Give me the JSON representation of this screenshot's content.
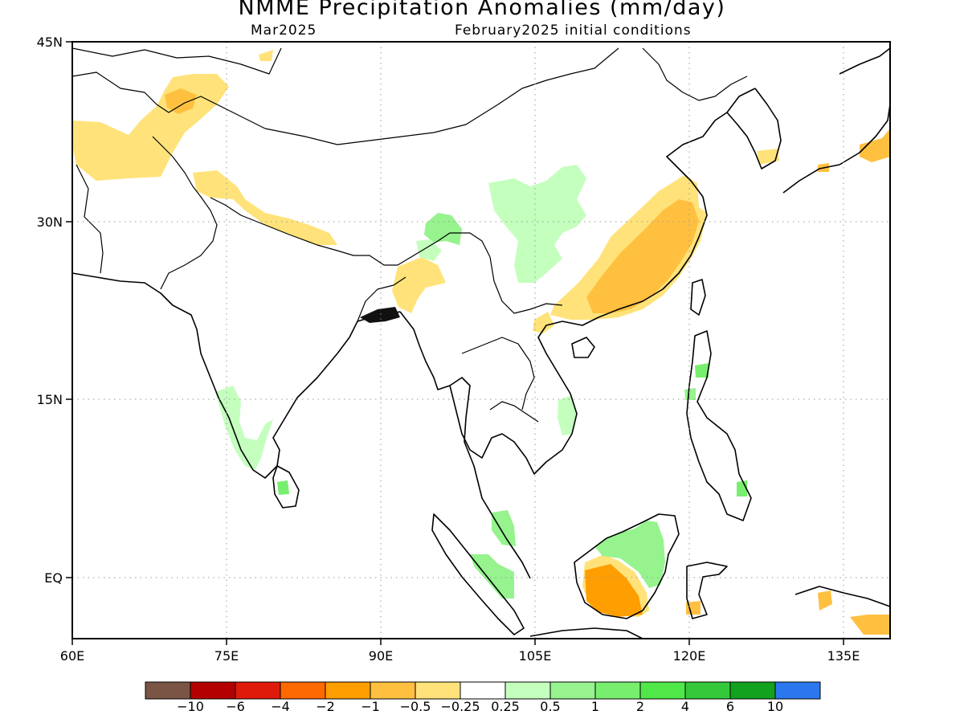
{
  "title": "NMME Precipitation Anomalies (mm/day)",
  "subtitle_left": "Mar2025",
  "subtitle_right": "February2025 initial conditions",
  "map": {
    "lon_range": [
      60,
      140
    ],
    "lat_range": [
      -5.5,
      45
    ],
    "grid": "dotted",
    "lon_tick_labels": [
      {
        "lon": 60,
        "label": "60E"
      },
      {
        "lon": 75,
        "label": "75E"
      },
      {
        "lon": 90,
        "label": "90E"
      },
      {
        "lon": 105,
        "label": "105E"
      },
      {
        "lon": 120,
        "label": "120E"
      },
      {
        "lon": 135,
        "label": "135E"
      }
    ],
    "lat_tick_labels": [
      {
        "lat": 45,
        "label": "45N"
      },
      {
        "lat": 30,
        "label": "30N"
      },
      {
        "lat": 15,
        "label": "15N"
      },
      {
        "lat": 0,
        "label": "EQ"
      }
    ]
  },
  "colorbar": {
    "colors": [
      "#7a5545",
      "#b40000",
      "#e01a0a",
      "#ff6a00",
      "#ff9e00",
      "#ffc040",
      "#ffe37a",
      "#ffffff",
      "#c4ffbe",
      "#96f38e",
      "#78ee6f",
      "#50e848",
      "#33c93a",
      "#12a21e",
      "#2b78ee"
    ],
    "labels": [
      "-10",
      "-6",
      "-4",
      "-2",
      "-1",
      "-0.5",
      "-0.25",
      "0.25",
      "0.5",
      "1",
      "2",
      "4",
      "6",
      "10"
    ]
  }
}
